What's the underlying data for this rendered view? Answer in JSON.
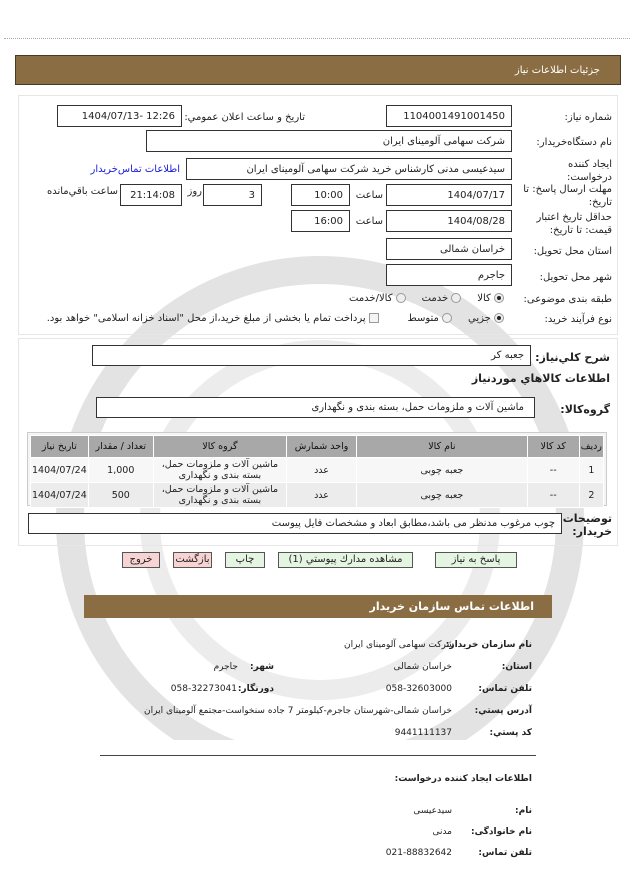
{
  "header": {
    "title": "جزئيات اطلاعات نياز"
  },
  "form": {
    "need_number_label": "شماره نياز:",
    "need_number": "1104001491001450",
    "announce_label": "تاريخ و ساعت اعلان عمومي:",
    "announce_value": "1404/07/13- 12:26",
    "buyer_org_label": "نام دستگاه‌خريدار:",
    "buyer_org": "شرکت سهامی  آلومينای ايران",
    "creator_label": "ايجاد کننده درخواست:",
    "creator": "سيدعيسی مدنی  کارشناس خريد شرکت سهامی  آلومينای ايران",
    "contact_link": "اطلاعات تماس‌خريدار",
    "deadline_label": "مهلت ارسال پاسخ: تا تاريخ:",
    "deadline_date": "1404/07/17",
    "time_label": "ساعت",
    "deadline_time": "10:00",
    "days_value": "3",
    "days_label": "روز",
    "remaining_value": "21:14:08",
    "remaining_label": "ساعت باقي‌مانده",
    "validity_label": "حداقل تاريخ اعتبار قيمت: تا تاريخ:",
    "validity_date": "1404/08/28",
    "validity_time": "16:00",
    "province_label": "استان محل تحويل:",
    "province": "خراسان شمالی",
    "city_label": "شهر محل تحويل:",
    "city": "جاجرم",
    "category_label": "طبقه بندی موضوعی:",
    "category_options": [
      "کالا",
      "خدمت",
      "کالا/خدمت"
    ],
    "category_selected": "کالا",
    "process_label": "نوع فرآيند خريد:",
    "process_options": [
      "جزيي",
      "متوسط"
    ],
    "process_selected": "جزيي",
    "treasury_text": "پرداخت تمام يا بخشی از مبلغ خريد،از محل \"اسناد خزانه اسلامی\" خواهد بود."
  },
  "need": {
    "summary_label": "شرح کلي‌نياز:",
    "summary": "جعبه کر",
    "goods_heading": "اطلاعات کالاهاي موردنياز",
    "group_label": "گروه‌کالا:",
    "group": "ماشين آلات و ملزومات حمل، بسته بندی و نگهداری",
    "table": {
      "headers": [
        "رديف",
        "کد کالا",
        "نام کالا",
        "واحد شمارش",
        "گروه کالا",
        "تعداد / مقدار",
        "تاريخ نياز"
      ],
      "rows": [
        [
          "1",
          "--",
          "جعبه چوبی",
          "عدد",
          "ماشين آلات و ملزومات حمل، بسته بندی و نگهداری",
          "1,000",
          "1404/07/24"
        ],
        [
          "2",
          "--",
          "جعبه چوبی",
          "عدد",
          "ماشين آلات و ملزومات حمل، بسته بندی و نگهداری",
          "500",
          "1404/07/24"
        ]
      ]
    },
    "desc_label": "توضيحات خريدار:",
    "desc": "چوب مرغوب مدنظر می باشد،مطابق ابعاد و  مشخصات فايل پيوست"
  },
  "buttons": {
    "reply": "پاسخ به نياز",
    "attachments": "مشاهده مدارك پيوستي (1)",
    "print": "چاپ",
    "back": "بازگشت",
    "exit": "خروج"
  },
  "contact": {
    "title": "اطلاعات تماس سازمان خريدار",
    "org_label": "نام سازمان خريدار:",
    "org": "شرکت سهامی آلومينای ايران",
    "province_label": "استان:",
    "province": "خراسان شمالی",
    "city_label": "شهر:",
    "city": "جاجرم",
    "phone_label": "تلفن تماس:",
    "phone": "058-32603000",
    "fax_label": "دورنگار:",
    "fax": "058-32273041",
    "address_label": "آدرس پستي:",
    "address": "خراسان شمالی-شهرستان جاجرم-کيلومتر 7 جاده  سنخواست-مجتمع آلومينای ايران",
    "postal_label": "کد پستي:",
    "postal": "9441111137",
    "creator_heading": "اطلاعات ايجاد کننده درخواست:",
    "name_label": "نام:",
    "name": "سيدعيسی",
    "family_label": "نام خانوادگی:",
    "family": "مدنی",
    "cphone_label": "تلفن تماس:",
    "cphone": "021-88832642"
  },
  "colors": {
    "header_bar": "#8b6d43",
    "link": "#1a1adb",
    "button_green": "#e4f5e1",
    "button_pink": "#f8d3d3",
    "table_header": "#a8a8a8"
  }
}
